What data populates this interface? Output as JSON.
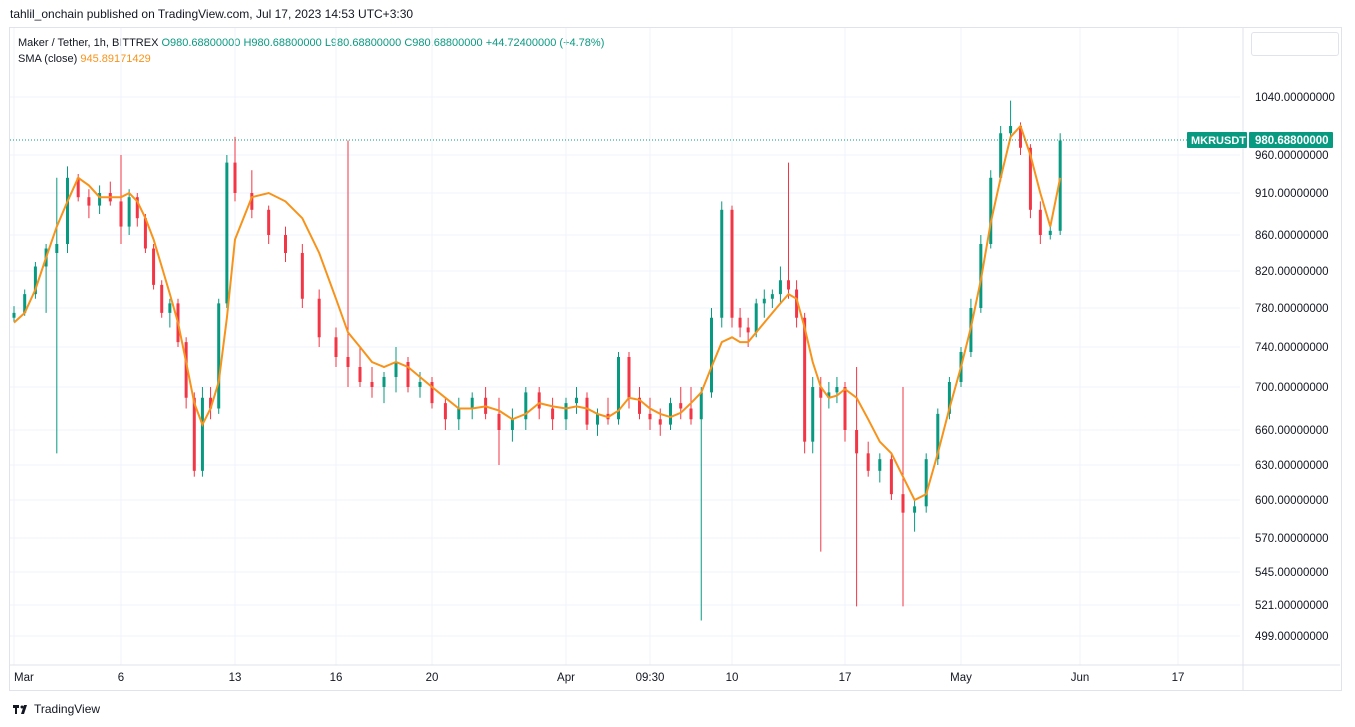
{
  "header": {
    "published_line": "tahlil_onchain published on TradingView.com, Jul 17, 2023 14:53 UTC+3:30"
  },
  "legend": {
    "symbol": "Maker / Tether, 1h, BITTREX",
    "open": "O980.68800000",
    "high": "H980.68800000",
    "low": "L980.68800000",
    "close": "C980.68800000",
    "change": "+44.72400000 (+4.78%)",
    "sma_label": "SMA (close)",
    "sma_value": "945.89171429"
  },
  "footer": {
    "brand": "TradingView"
  },
  "colors": {
    "up": "#089981",
    "down": "#f23645",
    "sma": "#f7931a",
    "grid": "#f0f3fa",
    "axis_text": "#131722",
    "price_tag_bg": "#089981"
  },
  "chart_data": {
    "type": "candlestick",
    "symbol": "MKRUSDT",
    "last_price": "980.68800000",
    "price_scale_labels": [
      "1040.00000000",
      "960.00000000",
      "910.00000000",
      "860.00000000",
      "820.00000000",
      "780.00000000",
      "740.00000000",
      "700.00000000",
      "660.00000000",
      "630.00000000",
      "600.00000000",
      "570.00000000",
      "545.00000000",
      "521.00000000",
      "499.00000000"
    ],
    "price_scale_values": [
      1040,
      960,
      910,
      860,
      820,
      780,
      740,
      700,
      660,
      630,
      600,
      570,
      545,
      521,
      499
    ],
    "x_tick_labels": [
      "Mar",
      "6",
      "13",
      "16",
      "20",
      "Apr",
      "09:30",
      "10",
      "17",
      "May",
      "Jun",
      "17"
    ],
    "x_ticks": [
      0,
      5,
      12,
      15,
      19,
      24,
      28,
      32,
      39,
      44,
      50,
      54
    ],
    "x_range": [
      0,
      58
    ],
    "candles": [
      [
        0,
        770,
        782,
        766,
        775
      ],
      [
        0.5,
        775,
        800,
        772,
        795
      ],
      [
        1,
        795,
        830,
        790,
        825
      ],
      [
        1.5,
        825,
        850,
        775,
        845
      ],
      [
        2,
        840,
        930,
        640,
        850
      ],
      [
        2.5,
        850,
        945,
        840,
        930
      ],
      [
        3,
        930,
        935,
        900,
        905
      ],
      [
        3.5,
        905,
        915,
        880,
        895
      ],
      [
        4,
        895,
        920,
        885,
        910
      ],
      [
        4.5,
        910,
        925,
        895,
        900
      ],
      [
        5,
        900,
        960,
        850,
        870
      ],
      [
        5.5,
        870,
        915,
        860,
        905
      ],
      [
        6,
        905,
        910,
        870,
        880
      ],
      [
        6.5,
        880,
        885,
        840,
        845
      ],
      [
        7,
        845,
        850,
        800,
        805
      ],
      [
        7.5,
        805,
        810,
        770,
        775
      ],
      [
        8,
        775,
        790,
        760,
        785
      ],
      [
        8.5,
        785,
        790,
        740,
        745
      ],
      [
        9,
        745,
        750,
        680,
        690
      ],
      [
        9.5,
        690,
        695,
        620,
        625
      ],
      [
        10,
        625,
        700,
        620,
        690
      ],
      [
        10.5,
        690,
        700,
        670,
        680
      ],
      [
        11,
        680,
        790,
        675,
        785
      ],
      [
        11.5,
        785,
        960,
        780,
        950
      ],
      [
        12,
        950,
        985,
        900,
        910
      ],
      [
        12.5,
        910,
        940,
        880,
        890
      ],
      [
        13,
        890,
        895,
        850,
        860
      ],
      [
        13.5,
        860,
        870,
        830,
        840
      ],
      [
        14,
        840,
        850,
        780,
        790
      ],
      [
        14.5,
        790,
        800,
        740,
        750
      ],
      [
        15,
        750,
        760,
        720,
        730
      ],
      [
        15.5,
        730,
        980,
        700,
        720
      ],
      [
        16,
        720,
        740,
        700,
        705
      ],
      [
        16.5,
        705,
        720,
        690,
        700
      ],
      [
        17,
        700,
        715,
        685,
        710
      ],
      [
        17.5,
        710,
        740,
        695,
        725
      ],
      [
        18,
        725,
        730,
        695,
        700
      ],
      [
        18.5,
        700,
        715,
        690,
        705
      ],
      [
        19,
        705,
        710,
        680,
        685
      ],
      [
        19.5,
        685,
        690,
        660,
        670
      ],
      [
        20,
        670,
        690,
        660,
        680
      ],
      [
        20.5,
        680,
        695,
        670,
        690
      ],
      [
        21,
        690,
        700,
        670,
        675
      ],
      [
        21.5,
        675,
        690,
        630,
        660
      ],
      [
        22,
        660,
        680,
        650,
        670
      ],
      [
        22.5,
        670,
        700,
        660,
        695
      ],
      [
        23,
        695,
        700,
        670,
        680
      ],
      [
        23.5,
        680,
        690,
        660,
        670
      ],
      [
        24,
        670,
        690,
        660,
        685
      ],
      [
        24.5,
        685,
        700,
        675,
        690
      ],
      [
        25,
        690,
        695,
        660,
        665
      ],
      [
        25.5,
        665,
        680,
        655,
        675
      ],
      [
        26,
        675,
        690,
        665,
        670
      ],
      [
        26.5,
        670,
        735,
        665,
        730
      ],
      [
        27,
        730,
        735,
        680,
        690
      ],
      [
        27.5,
        690,
        700,
        670,
        675
      ],
      [
        28,
        675,
        690,
        660,
        670
      ],
      [
        28.5,
        670,
        680,
        655,
        665
      ],
      [
        29,
        665,
        690,
        660,
        685
      ],
      [
        29.5,
        685,
        700,
        670,
        680
      ],
      [
        30,
        680,
        700,
        665,
        670
      ],
      [
        30.5,
        670,
        700,
        510,
        695
      ],
      [
        31,
        695,
        780,
        690,
        770
      ],
      [
        31.5,
        770,
        900,
        760,
        890
      ],
      [
        32,
        890,
        895,
        760,
        770
      ],
      [
        32.5,
        770,
        780,
        750,
        760
      ],
      [
        33,
        760,
        770,
        740,
        755
      ],
      [
        33.5,
        755,
        790,
        750,
        785
      ],
      [
        34,
        785,
        800,
        770,
        790
      ],
      [
        34.5,
        790,
        800,
        780,
        795
      ],
      [
        35,
        795,
        825,
        785,
        810
      ],
      [
        35.5,
        810,
        950,
        790,
        800
      ],
      [
        36,
        800,
        810,
        760,
        770
      ],
      [
        36.5,
        770,
        775,
        640,
        650
      ],
      [
        37,
        650,
        710,
        640,
        700
      ],
      [
        37.5,
        700,
        710,
        560,
        690
      ],
      [
        38,
        690,
        705,
        680,
        695
      ],
      [
        38.5,
        695,
        710,
        685,
        700
      ],
      [
        39,
        700,
        705,
        650,
        660
      ],
      [
        39.5,
        660,
        720,
        520,
        640
      ],
      [
        40,
        640,
        650,
        620,
        625
      ],
      [
        40.5,
        625,
        640,
        615,
        635
      ],
      [
        41,
        635,
        640,
        600,
        605
      ],
      [
        41.5,
        605,
        700,
        520,
        590
      ],
      [
        42,
        590,
        600,
        575,
        595
      ],
      [
        42.5,
        595,
        640,
        590,
        635
      ],
      [
        43,
        635,
        680,
        630,
        675
      ],
      [
        43.5,
        675,
        710,
        670,
        705
      ],
      [
        44,
        705,
        740,
        700,
        735
      ],
      [
        44.5,
        735,
        790,
        730,
        780
      ],
      [
        45,
        780,
        860,
        775,
        850
      ],
      [
        45.5,
        850,
        940,
        845,
        930
      ],
      [
        46,
        930,
        1000,
        925,
        990
      ],
      [
        46.5,
        990,
        1045,
        980,
        1000
      ],
      [
        47,
        1000,
        1005,
        960,
        970
      ],
      [
        47.5,
        970,
        975,
        880,
        890
      ],
      [
        48,
        890,
        900,
        850,
        860
      ],
      [
        48.5,
        860,
        870,
        855,
        865
      ],
      [
        49,
        865,
        990,
        860,
        980
      ]
    ],
    "sma": [
      [
        0,
        765
      ],
      [
        0.5,
        775
      ],
      [
        1,
        800
      ],
      [
        1.5,
        835
      ],
      [
        2,
        870
      ],
      [
        2.5,
        900
      ],
      [
        3,
        930
      ],
      [
        3.5,
        920
      ],
      [
        4,
        905
      ],
      [
        4.5,
        905
      ],
      [
        5,
        905
      ],
      [
        5.5,
        910
      ],
      [
        6,
        900
      ],
      [
        6.5,
        880
      ],
      [
        7,
        855
      ],
      [
        7.5,
        825
      ],
      [
        8,
        795
      ],
      [
        8.5,
        765
      ],
      [
        9,
        725
      ],
      [
        9.5,
        685
      ],
      [
        10,
        665
      ],
      [
        10.5,
        680
      ],
      [
        11,
        705
      ],
      [
        11.5,
        770
      ],
      [
        12,
        855
      ],
      [
        12.5,
        905
      ],
      [
        13,
        910
      ],
      [
        13.5,
        900
      ],
      [
        14,
        880
      ],
      [
        14.5,
        840
      ],
      [
        15,
        790
      ],
      [
        15.5,
        755
      ],
      [
        16,
        740
      ],
      [
        16.5,
        725
      ],
      [
        17,
        720
      ],
      [
        17.5,
        725
      ],
      [
        18,
        720
      ],
      [
        18.5,
        710
      ],
      [
        19,
        700
      ],
      [
        19.5,
        690
      ],
      [
        20,
        680
      ],
      [
        20.5,
        680
      ],
      [
        21,
        682
      ],
      [
        21.5,
        678
      ],
      [
        22,
        670
      ],
      [
        22.5,
        675
      ],
      [
        23,
        685
      ],
      [
        23.5,
        682
      ],
      [
        24,
        680
      ],
      [
        24.5,
        682
      ],
      [
        25,
        680
      ],
      [
        25.5,
        675
      ],
      [
        26,
        672
      ],
      [
        26.5,
        678
      ],
      [
        27,
        690
      ],
      [
        27.5,
        688
      ],
      [
        28,
        680
      ],
      [
        28.5,
        675
      ],
      [
        29,
        672
      ],
      [
        29.5,
        676
      ],
      [
        30,
        685
      ],
      [
        30.5,
        695
      ],
      [
        31,
        720
      ],
      [
        31.5,
        745
      ],
      [
        32,
        750
      ],
      [
        32.5,
        745
      ],
      [
        33,
        745
      ],
      [
        33.5,
        755
      ],
      [
        34,
        765
      ],
      [
        34.5,
        775
      ],
      [
        35,
        785
      ],
      [
        35.5,
        795
      ],
      [
        36,
        790
      ],
      [
        36.5,
        760
      ],
      [
        37,
        725
      ],
      [
        37.5,
        700
      ],
      [
        38,
        690
      ],
      [
        38.5,
        692
      ],
      [
        39,
        698
      ],
      [
        39.5,
        690
      ],
      [
        40,
        670
      ],
      [
        40.5,
        650
      ],
      [
        41,
        640
      ],
      [
        41.5,
        620
      ],
      [
        42,
        600
      ],
      [
        42.5,
        605
      ],
      [
        43,
        640
      ],
      [
        43.5,
        680
      ],
      [
        44,
        720
      ],
      [
        44.5,
        760
      ],
      [
        45,
        810
      ],
      [
        45.5,
        875
      ],
      [
        46,
        930
      ],
      [
        46.5,
        985
      ],
      [
        47,
        1000
      ],
      [
        47.5,
        960
      ],
      [
        48,
        910
      ],
      [
        48.5,
        870
      ],
      [
        49,
        930
      ]
    ]
  }
}
